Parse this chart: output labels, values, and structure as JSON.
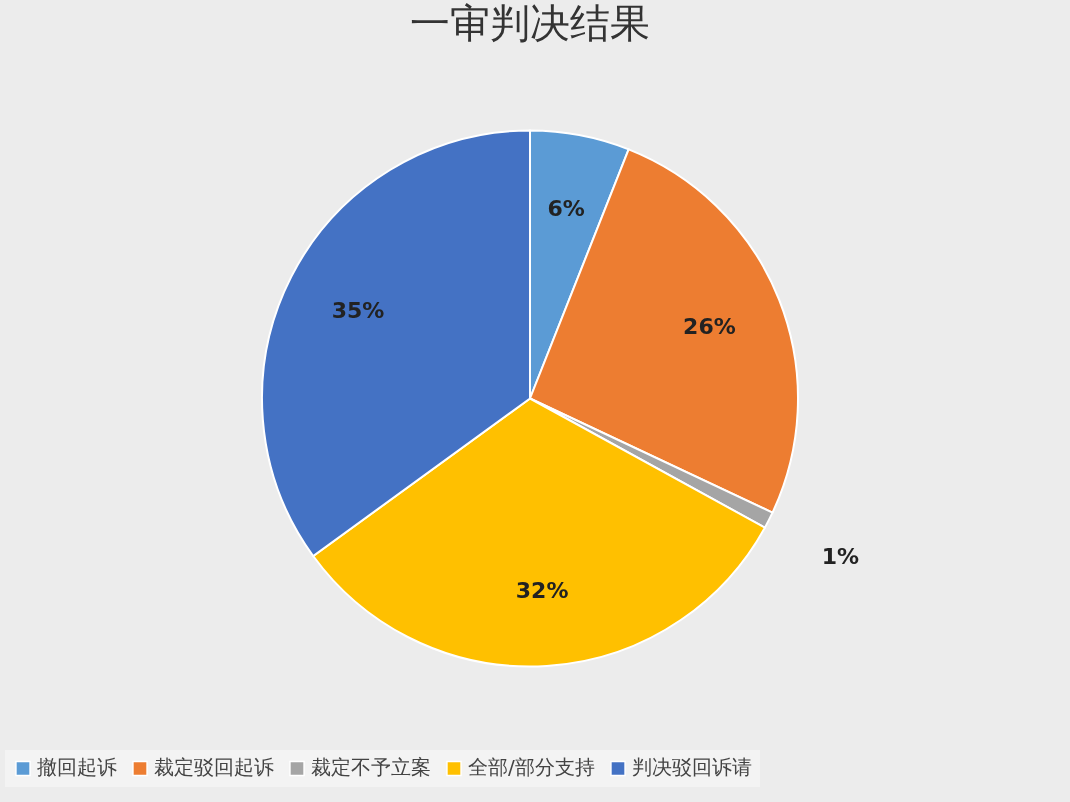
{
  "chart_data": {
    "type": "pie",
    "title": "一审判决结果",
    "categories": [
      "撤回起诉",
      "裁定驳回起诉",
      "裁定不予立案",
      "全部/部分支持",
      "判决驳回诉请"
    ],
    "values": [
      6,
      26,
      1,
      32,
      35
    ],
    "colors": [
      "#5b9bd5",
      "#ed7d31",
      "#a5a5a5",
      "#ffc000",
      "#4472c4"
    ],
    "value_labels": [
      "6%",
      "26%",
      "1%",
      "32%",
      "35%"
    ],
    "legend": "bottom"
  }
}
